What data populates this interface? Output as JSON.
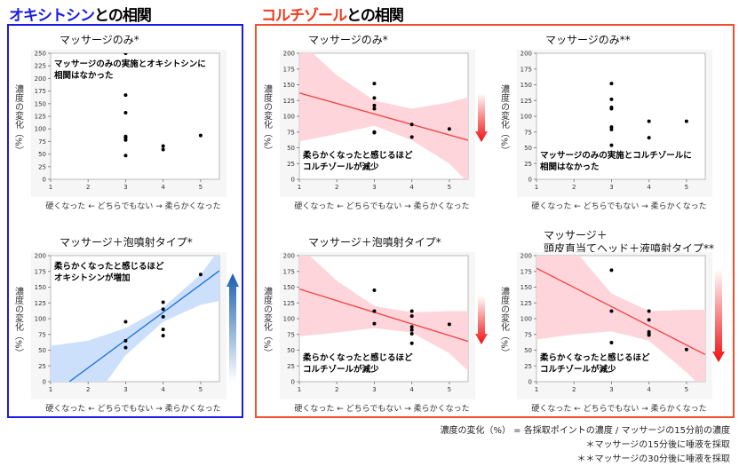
{
  "sections": {
    "oxytocin": {
      "name": "オキシトシン",
      "suffix": "との相関",
      "color": "#1a1ae6"
    },
    "cortisol": {
      "name": "コルチゾール",
      "suffix": "との相関",
      "color": "#f03a1e"
    }
  },
  "y_label": "濃度の変化（%）",
  "x_label": "硬くなった ← どちらでもない → 柔らかくなった",
  "footnotes": [
    "濃度の変化（%） = 各採取ポイントの濃度 / マッサージの15分前の濃度",
    "＊マッサージの15分後に唾液を採取",
    "＊＊マッサージの30分後に唾液を採取"
  ],
  "chart_data": [
    {
      "type": "scatter",
      "title": [
        "マッサージのみ*"
      ],
      "xlim": [
        1,
        5.5
      ],
      "ylim": [
        0,
        250
      ],
      "xticks": [
        1,
        2,
        3,
        4,
        5
      ],
      "yticks": [
        0,
        25,
        50,
        75,
        100,
        125,
        150,
        175,
        200,
        225,
        250
      ],
      "points": [
        [
          3,
          250
        ],
        [
          3,
          167
        ],
        [
          3,
          132
        ],
        [
          3,
          85
        ],
        [
          3,
          82
        ],
        [
          3,
          78
        ],
        [
          3,
          47
        ],
        [
          4,
          66
        ],
        [
          4,
          59
        ],
        [
          5,
          87
        ]
      ],
      "annotation": [
        "マッサージのみの実施とオキシトシンに",
        "相関はなかった"
      ],
      "annotation_position": "top-left"
    },
    {
      "type": "scatter",
      "title": [
        "マッサージ＋泡噴射タイプ*"
      ],
      "xlim": [
        1,
        5.5
      ],
      "ylim": [
        0,
        200
      ],
      "xticks": [
        1,
        2,
        3,
        4,
        5
      ],
      "yticks": [
        0,
        25,
        50,
        75,
        100,
        125,
        150,
        175,
        200
      ],
      "points": [
        [
          3,
          95
        ],
        [
          3,
          65
        ],
        [
          3,
          54
        ],
        [
          4,
          126
        ],
        [
          4,
          115
        ],
        [
          4,
          103
        ],
        [
          4,
          83
        ],
        [
          4,
          73
        ],
        [
          5,
          170
        ]
      ],
      "fit": [
        [
          1.5,
          0
        ],
        [
          5.5,
          176
        ]
      ],
      "band_x": [
        1,
        2,
        3,
        4,
        5,
        5.5
      ],
      "band_upper": [
        57,
        65,
        85,
        118,
        170,
        210
      ],
      "band_lower": [
        -100,
        -40,
        42,
        95,
        122,
        128
      ],
      "line_color": "#1a6fe0",
      "band_color": "#cce0fb",
      "arrow": "up",
      "arrow_color": "#1a5fb0",
      "annotation": [
        "柔らかくなったと感じるほど",
        "オキシトシンが増加"
      ],
      "annotation_position": "top-left"
    },
    {
      "type": "scatter",
      "title": [
        "マッサージのみ*"
      ],
      "xlim": [
        1,
        5.5
      ],
      "ylim": [
        0,
        200
      ],
      "xticks": [
        1,
        2,
        3,
        4,
        5
      ],
      "yticks": [
        0,
        25,
        50,
        75,
        100,
        125,
        150,
        175,
        200
      ],
      "points": [
        [
          3,
          152
        ],
        [
          3,
          129
        ],
        [
          3,
          117
        ],
        [
          3,
          112
        ],
        [
          3,
          75
        ],
        [
          3,
          74
        ],
        [
          4,
          87
        ],
        [
          4,
          67
        ],
        [
          5,
          80
        ]
      ],
      "fit": [
        [
          1,
          137
        ],
        [
          5.5,
          62
        ]
      ],
      "band_x": [
        1,
        2,
        3,
        4,
        5,
        5.5
      ],
      "band_upper": [
        220,
        165,
        125,
        112,
        122,
        130
      ],
      "band_lower": [
        60,
        72,
        85,
        62,
        25,
        -5
      ],
      "line_color": "#f04040",
      "band_color": "#fdd5da",
      "arrow": "down",
      "arrow_color": "#f01010",
      "annotation": [
        "柔らかくなったと感じるほど",
        "コルチゾールが減少"
      ],
      "annotation_position": "bottom-left"
    },
    {
      "type": "scatter",
      "title": [
        "マッサージのみ**"
      ],
      "xlim": [
        1,
        5.5
      ],
      "ylim": [
        0,
        200
      ],
      "xticks": [
        1,
        2,
        3,
        4,
        5
      ],
      "yticks": [
        0,
        25,
        50,
        75,
        100,
        125,
        150,
        175,
        200
      ],
      "points": [
        [
          3,
          152
        ],
        [
          3,
          127
        ],
        [
          3,
          114
        ],
        [
          3,
          112
        ],
        [
          3,
          83
        ],
        [
          3,
          79
        ],
        [
          3,
          54
        ],
        [
          4,
          92
        ],
        [
          4,
          66
        ],
        [
          5,
          92
        ]
      ],
      "annotation": [
        "マッサージのみの実施とコルチゾールに",
        "相関はなかった"
      ],
      "annotation_position": "bottom-left"
    },
    {
      "type": "scatter",
      "title": [
        "マッサージ＋泡噴射タイプ*"
      ],
      "xlim": [
        1,
        5.5
      ],
      "ylim": [
        0,
        200
      ],
      "xticks": [
        1,
        2,
        3,
        4,
        5
      ],
      "yticks": [
        0,
        25,
        50,
        75,
        100,
        125,
        150,
        175,
        200
      ],
      "points": [
        [
          3,
          145
        ],
        [
          3,
          112
        ],
        [
          3,
          92
        ],
        [
          4,
          112
        ],
        [
          4,
          104
        ],
        [
          4,
          87
        ],
        [
          4,
          82
        ],
        [
          4,
          76
        ],
        [
          4,
          61
        ],
        [
          5,
          91
        ]
      ],
      "fit": [
        [
          1,
          147
        ],
        [
          5.5,
          64
        ]
      ],
      "band_x": [
        1,
        2,
        3,
        4,
        5,
        5.5
      ],
      "band_upper": [
        215,
        160,
        120,
        110,
        112,
        112
      ],
      "band_lower": [
        72,
        78,
        85,
        78,
        45,
        17
      ],
      "line_color": "#f04040",
      "band_color": "#fdd5da",
      "arrow": "down",
      "arrow_color": "#f01010",
      "annotation": [
        "柔らかくなったと感じるほど",
        "コルチゾールが減少"
      ],
      "annotation_position": "bottom-left"
    },
    {
      "type": "scatter",
      "title": [
        "マッサージ＋",
        "頭皮直当てヘッド＋液噴射タイプ**"
      ],
      "xlim": [
        1,
        5.5
      ],
      "ylim": [
        0,
        200
      ],
      "xticks": [
        1,
        2,
        3,
        4,
        5
      ],
      "yticks": [
        0,
        25,
        50,
        75,
        100,
        125,
        150,
        175,
        200
      ],
      "points": [
        [
          3,
          177
        ],
        [
          3,
          112
        ],
        [
          3,
          62
        ],
        [
          4,
          112
        ],
        [
          4,
          98
        ],
        [
          4,
          79
        ],
        [
          4,
          76
        ],
        [
          4,
          74
        ],
        [
          5,
          51
        ]
      ],
      "fit": [
        [
          1,
          180
        ],
        [
          5.5,
          43
        ]
      ],
      "band_x": [
        1,
        2,
        3,
        4,
        5,
        5.5
      ],
      "band_upper": [
        260,
        210,
        140,
        112,
        114,
        114
      ],
      "band_lower": [
        67,
        75,
        80,
        65,
        15,
        -15
      ],
      "line_color": "#f04040",
      "band_color": "#fdd5da",
      "arrow": "down",
      "arrow_color": "#f01010",
      "annotation": [
        "柔らかくなったと感じるほど",
        "コルチゾールが減少"
      ],
      "annotation_position": "bottom-left"
    }
  ]
}
